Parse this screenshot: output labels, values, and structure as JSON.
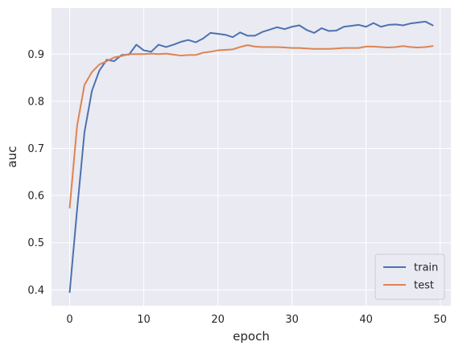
{
  "chart_data": {
    "type": "line",
    "title": "",
    "xlabel": "epoch",
    "ylabel": "auc",
    "x": [
      0,
      1,
      2,
      3,
      4,
      5,
      6,
      7,
      8,
      9,
      10,
      11,
      12,
      13,
      14,
      15,
      16,
      17,
      18,
      19,
      20,
      21,
      22,
      23,
      24,
      25,
      26,
      27,
      28,
      29,
      30,
      31,
      32,
      33,
      34,
      35,
      36,
      37,
      38,
      39,
      40,
      41,
      42,
      43,
      44,
      45,
      46,
      47,
      48,
      49
    ],
    "series": [
      {
        "name": "train",
        "color": "#4c72b0",
        "values": [
          0.395,
          0.57,
          0.735,
          0.822,
          0.865,
          0.888,
          0.885,
          0.898,
          0.899,
          0.92,
          0.908,
          0.905,
          0.92,
          0.915,
          0.92,
          0.926,
          0.93,
          0.925,
          0.933,
          0.945,
          0.943,
          0.941,
          0.936,
          0.946,
          0.939,
          0.939,
          0.947,
          0.952,
          0.957,
          0.953,
          0.958,
          0.961,
          0.951,
          0.945,
          0.955,
          0.949,
          0.95,
          0.958,
          0.96,
          0.962,
          0.958,
          0.966,
          0.958,
          0.962,
          0.963,
          0.961,
          0.965,
          0.967,
          0.969,
          0.961
        ]
      },
      {
        "name": "test",
        "color": "#dd8452",
        "values": [
          0.574,
          0.748,
          0.835,
          0.862,
          0.878,
          0.885,
          0.893,
          0.896,
          0.9,
          0.9,
          0.9,
          0.901,
          0.9,
          0.901,
          0.899,
          0.897,
          0.898,
          0.898,
          0.903,
          0.905,
          0.908,
          0.909,
          0.91,
          0.915,
          0.919,
          0.916,
          0.915,
          0.915,
          0.915,
          0.914,
          0.913,
          0.913,
          0.912,
          0.911,
          0.911,
          0.911,
          0.912,
          0.913,
          0.913,
          0.913,
          0.916,
          0.916,
          0.915,
          0.914,
          0.915,
          0.917,
          0.915,
          0.914,
          0.915,
          0.917
        ]
      }
    ],
    "xlim": [
      -2.45,
      51.45
    ],
    "ylim": [
      0.3663,
      0.9977
    ],
    "xticks": [
      0,
      10,
      20,
      30,
      40,
      50
    ],
    "yticks": [
      0.4,
      0.5,
      0.6,
      0.7,
      0.8,
      0.9
    ],
    "grid": true,
    "legend": "lower-right",
    "colors": {
      "plot_background": "#eaeaf2",
      "grid": "#ffffff",
      "text": "#262626"
    }
  }
}
